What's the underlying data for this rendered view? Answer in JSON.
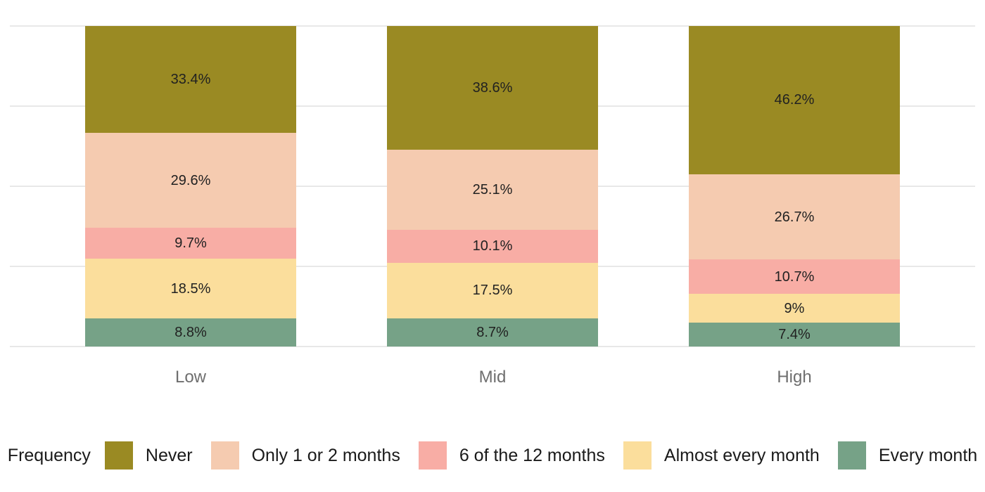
{
  "chart_data": {
    "type": "bar",
    "subtype": "stacked-percent",
    "orientation": "vertical",
    "title": "",
    "xlabel": "",
    "ylabel": "",
    "categories": [
      "Low",
      "Mid",
      "High"
    ],
    "series": [
      {
        "name": "Never",
        "color": "#9A8A23",
        "values": [
          33.4,
          38.6,
          46.2
        ],
        "labels": [
          "33.4%",
          "38.6%",
          "46.2%"
        ]
      },
      {
        "name": "Only 1 or 2 months",
        "color": "#F5CBB0",
        "values": [
          29.6,
          25.1,
          26.7
        ],
        "labels": [
          "29.6%",
          "25.1%",
          "26.7%"
        ]
      },
      {
        "name": "6 of the 12 months",
        "color": "#F8ADA5",
        "values": [
          9.7,
          10.1,
          10.7
        ],
        "labels": [
          "9.7%",
          "10.1%",
          "10.7%"
        ]
      },
      {
        "name": "Almost every month",
        "color": "#FBDE9C",
        "values": [
          18.5,
          17.5,
          9
        ],
        "labels": [
          "18.5%",
          "17.5%",
          "9%"
        ]
      },
      {
        "name": "Every month",
        "color": "#76A287",
        "values": [
          8.8,
          8.7,
          7.4
        ],
        "labels": [
          "8.8%",
          "8.7%",
          "7.4%"
        ]
      }
    ],
    "legend_title": "Frequency",
    "legend_position": "bottom",
    "value_axis": {
      "min": 0,
      "max": 100,
      "gridline_values": [
        0,
        25,
        50,
        75,
        100
      ],
      "tick_labels_visible": false
    },
    "grid": "horizontal",
    "colors": {
      "background": "#FFFFFF",
      "gridline": "#E8E8E8",
      "value_label_text": "#212121",
      "axis_label_text": "#6E6E6E",
      "legend_text": "#1A1A1A"
    }
  }
}
